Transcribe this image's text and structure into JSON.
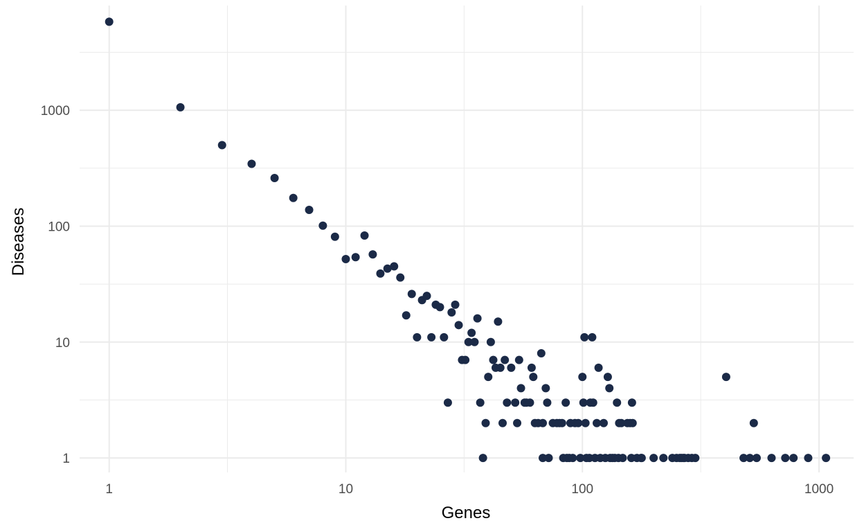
{
  "chart_data": {
    "type": "scatter",
    "title": "",
    "xlabel": "Genes",
    "ylabel": "Diseases",
    "xscale": "log10",
    "yscale": "log10",
    "xlim": [
      0.75,
      1400
    ],
    "ylim": [
      0.75,
      8000
    ],
    "x_ticks": [
      1,
      10,
      100,
      1000
    ],
    "x_tick_labels": [
      "1",
      "10",
      "100",
      "1000"
    ],
    "y_ticks": [
      1,
      10,
      100,
      1000
    ],
    "y_tick_labels": [
      "1",
      "10",
      "100",
      "1000"
    ],
    "grid": true,
    "legend": "none",
    "point_color": "#1b2a47",
    "grid_color": "#ebebeb",
    "points": [
      [
        1,
        5800
      ],
      [
        2,
        1060
      ],
      [
        3,
        500
      ],
      [
        4,
        345
      ],
      [
        5,
        260
      ],
      [
        6,
        175
      ],
      [
        7,
        138
      ],
      [
        8,
        101
      ],
      [
        9,
        81
      ],
      [
        10,
        52
      ],
      [
        11,
        54
      ],
      [
        12,
        83
      ],
      [
        13,
        57
      ],
      [
        14,
        39
      ],
      [
        15,
        43
      ],
      [
        16,
        45
      ],
      [
        17,
        36
      ],
      [
        18,
        17
      ],
      [
        19,
        26
      ],
      [
        20,
        11
      ],
      [
        21,
        23
      ],
      [
        22,
        25
      ],
      [
        23,
        11
      ],
      [
        24,
        21
      ],
      [
        25,
        20
      ],
      [
        26,
        11
      ],
      [
        27,
        3
      ],
      [
        28,
        18
      ],
      [
        29,
        21
      ],
      [
        30,
        14
      ],
      [
        31,
        7
      ],
      [
        32,
        7
      ],
      [
        33,
        10
      ],
      [
        34,
        12
      ],
      [
        35,
        10
      ],
      [
        36,
        16
      ],
      [
        37,
        3
      ],
      [
        38,
        1
      ],
      [
        39,
        2
      ],
      [
        40,
        5
      ],
      [
        41,
        10
      ],
      [
        42,
        7
      ],
      [
        43,
        6
      ],
      [
        44,
        15
      ],
      [
        45,
        6
      ],
      [
        46,
        2
      ],
      [
        47,
        7
      ],
      [
        48,
        3
      ],
      [
        50,
        6
      ],
      [
        52,
        3
      ],
      [
        53,
        2
      ],
      [
        54,
        7
      ],
      [
        55,
        4
      ],
      [
        57,
        3
      ],
      [
        58,
        3
      ],
      [
        60,
        3
      ],
      [
        61,
        6
      ],
      [
        62,
        5
      ],
      [
        63,
        2
      ],
      [
        65,
        2
      ],
      [
        67,
        8
      ],
      [
        68,
        1
      ],
      [
        68,
        2
      ],
      [
        70,
        4
      ],
      [
        71,
        3
      ],
      [
        72,
        1
      ],
      [
        75,
        2
      ],
      [
        78,
        2
      ],
      [
        80,
        2
      ],
      [
        82,
        2
      ],
      [
        83,
        1
      ],
      [
        85,
        3
      ],
      [
        86,
        1
      ],
      [
        88,
        1
      ],
      [
        89,
        2
      ],
      [
        91,
        1
      ],
      [
        93,
        2
      ],
      [
        96,
        2
      ],
      [
        98,
        1
      ],
      [
        100,
        5
      ],
      [
        101,
        3
      ],
      [
        102,
        11
      ],
      [
        103,
        2
      ],
      [
        104,
        1
      ],
      [
        107,
        1
      ],
      [
        108,
        3
      ],
      [
        110,
        11
      ],
      [
        111,
        3
      ],
      [
        113,
        1
      ],
      [
        115,
        2
      ],
      [
        117,
        6
      ],
      [
        119,
        1
      ],
      [
        123,
        2
      ],
      [
        125,
        1
      ],
      [
        128,
        5
      ],
      [
        130,
        4
      ],
      [
        131,
        1
      ],
      [
        134,
        1
      ],
      [
        137,
        1
      ],
      [
        140,
        3
      ],
      [
        142,
        1
      ],
      [
        143,
        2
      ],
      [
        146,
        2
      ],
      [
        148,
        1
      ],
      [
        155,
        2
      ],
      [
        159,
        2
      ],
      [
        161,
        1
      ],
      [
        162,
        3
      ],
      [
        163,
        2
      ],
      [
        170,
        1
      ],
      [
        177,
        1
      ],
      [
        178,
        1
      ],
      [
        200,
        1
      ],
      [
        220,
        1
      ],
      [
        240,
        1
      ],
      [
        250,
        1
      ],
      [
        258,
        1
      ],
      [
        262,
        1
      ],
      [
        267,
        1
      ],
      [
        270,
        1
      ],
      [
        280,
        1
      ],
      [
        290,
        1
      ],
      [
        300,
        1
      ],
      [
        405,
        5
      ],
      [
        480,
        1
      ],
      [
        510,
        1
      ],
      [
        530,
        2
      ],
      [
        545,
        1
      ],
      [
        630,
        1
      ],
      [
        720,
        1
      ],
      [
        780,
        1
      ],
      [
        900,
        1
      ],
      [
        1070,
        1
      ]
    ]
  }
}
